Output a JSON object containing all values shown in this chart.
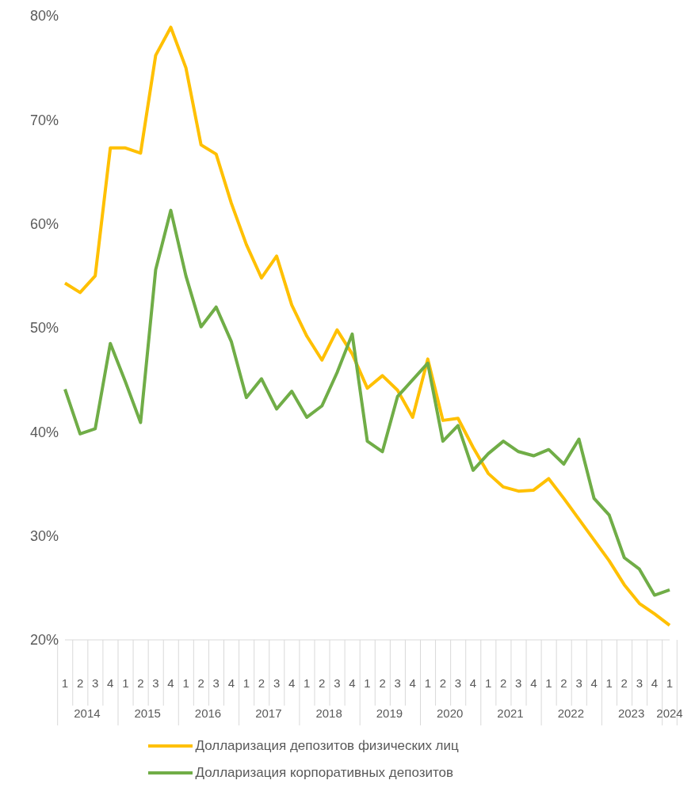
{
  "chart_data": {
    "type": "line",
    "categories": [
      "1",
      "2",
      "3",
      "4",
      "1",
      "2",
      "3",
      "4",
      "1",
      "2",
      "3",
      "4",
      "1",
      "2",
      "3",
      "4",
      "1",
      "2",
      "3",
      "4",
      "1",
      "2",
      "3",
      "4",
      "1",
      "2",
      "3",
      "4",
      "1",
      "2",
      "3",
      "4",
      "1",
      "2",
      "3",
      "4",
      "1",
      "2",
      "3",
      "4",
      "1"
    ],
    "annotations": [
      "2014",
      "2015",
      "2016",
      "2017",
      "2018",
      "2019",
      "2020",
      "2021",
      "2022",
      "2023",
      "2024"
    ],
    "series": [
      {
        "name": "Долларизация депозитов физических лиц",
        "color": "#ffc000",
        "values": [
          54.3,
          53.4,
          55.0,
          67.3,
          67.3,
          66.8,
          76.2,
          78.9,
          75.0,
          67.6,
          66.7,
          62.0,
          58.0,
          54.8,
          56.9,
          52.2,
          49.2,
          46.9,
          49.8,
          47.5,
          44.2,
          45.4,
          44.0,
          41.4,
          47.0,
          41.1,
          41.3,
          38.5,
          36.0,
          34.7,
          34.3,
          34.4,
          35.5,
          33.6,
          31.6,
          29.6,
          27.6,
          25.3,
          23.5,
          22.5,
          21.4
        ]
      },
      {
        "name": "Долларизация корпоративных депозитов",
        "color": "#70ad47",
        "values": [
          44.1,
          39.8,
          40.3,
          48.5,
          44.8,
          40.9,
          55.6,
          61.3,
          55.0,
          50.1,
          52.0,
          48.7,
          43.3,
          45.1,
          42.2,
          43.9,
          41.4,
          42.5,
          45.7,
          49.4,
          39.1,
          38.1,
          43.4,
          45.0,
          46.6,
          39.1,
          40.6,
          36.3,
          37.9,
          39.1,
          38.1,
          37.7,
          38.3,
          36.9,
          39.3,
          33.6,
          32.0,
          27.9,
          26.8,
          24.3,
          24.8
        ]
      }
    ],
    "ylim": [
      20,
      80
    ],
    "yticks": [
      {
        "value": 20,
        "label": "20%"
      },
      {
        "value": 30,
        "label": "30%"
      },
      {
        "value": 40,
        "label": "40%"
      },
      {
        "value": 50,
        "label": "50%"
      },
      {
        "value": 60,
        "label": "60%"
      },
      {
        "value": 70,
        "label": "70%"
      },
      {
        "value": 80,
        "label": "80%"
      }
    ],
    "grid": false,
    "legend": "bottom",
    "marker": "none",
    "line_style": "solid"
  }
}
